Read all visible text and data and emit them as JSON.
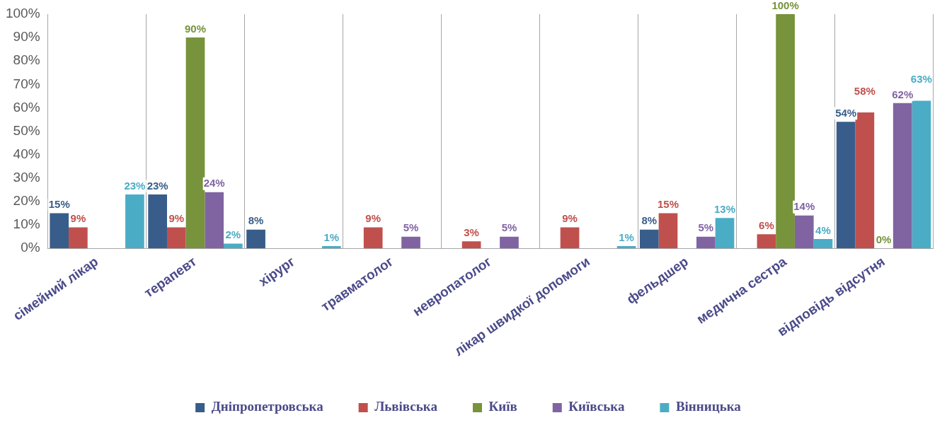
{
  "chart_data": {
    "type": "bar",
    "categories": [
      "сімейний лікар",
      "терапевт",
      "хірург",
      "травматолог",
      "невропатолог",
      "лікар швидкої допомоги",
      "фельдшер",
      "медична сестра",
      "відповідь відсутня"
    ],
    "series": [
      {
        "name": "Дніпропетровська",
        "color": "#385d8a",
        "values": [
          15,
          23,
          8,
          null,
          null,
          null,
          8,
          null,
          54
        ],
        "value_labels": [
          "15%",
          "23%",
          "8%",
          null,
          null,
          null,
          "8%",
          null,
          "54%"
        ]
      },
      {
        "name": "Львівська",
        "color": "#c0504d",
        "values": [
          9,
          9,
          null,
          9,
          3,
          9,
          15,
          6,
          58
        ],
        "value_labels": [
          "9%",
          "9%",
          null,
          "9%",
          "3%",
          "9%",
          "15%",
          "6%",
          "58%"
        ]
      },
      {
        "name": "Київ",
        "color": "#77933c",
        "values": [
          null,
          90,
          null,
          null,
          null,
          null,
          null,
          100,
          0
        ],
        "value_labels": [
          null,
          "90%",
          null,
          null,
          null,
          null,
          null,
          "100%",
          "0%"
        ]
      },
      {
        "name": "Київська",
        "color": "#8064a2",
        "values": [
          null,
          24,
          null,
          5,
          5,
          null,
          5,
          14,
          62
        ],
        "value_labels": [
          null,
          "24%",
          null,
          "5%",
          "5%",
          null,
          "5%",
          "14%",
          "62%"
        ]
      },
      {
        "name": "Вінницька",
        "color": "#4bacc6",
        "values": [
          23,
          2,
          1,
          null,
          null,
          1,
          13,
          4,
          63
        ],
        "value_labels": [
          "23%",
          "2%",
          "1%",
          null,
          null,
          "1%",
          "13%",
          "4%",
          "63%"
        ]
      }
    ],
    "ylim": [
      0,
      100
    ],
    "yticks": [
      {
        "value": 0,
        "label": "0%"
      },
      {
        "value": 10,
        "label": "10%"
      },
      {
        "value": 20,
        "label": "20%"
      },
      {
        "value": 30,
        "label": "30%"
      },
      {
        "value": 40,
        "label": "40%"
      },
      {
        "value": 50,
        "label": "50%"
      },
      {
        "value": 60,
        "label": "60%"
      },
      {
        "value": 70,
        "label": "70%"
      },
      {
        "value": 80,
        "label": "80%"
      },
      {
        "value": 90,
        "label": "90%"
      },
      {
        "value": 100,
        "label": "100%"
      }
    ],
    "grid": "x",
    "legend": "bottom"
  }
}
